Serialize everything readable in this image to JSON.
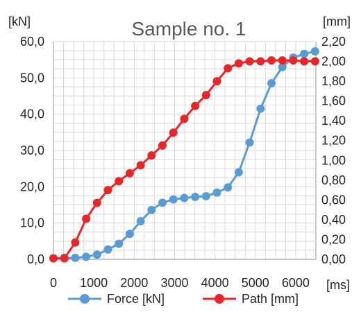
{
  "chart_data": {
    "type": "line",
    "title": "Sample no. 1",
    "left_unit": "[kN]",
    "right_unit": "[mm]",
    "x_unit": "[ms]",
    "xlim": [
      0,
      6500
    ],
    "ylim_left": [
      0,
      60
    ],
    "ylim_right": [
      0,
      2.2
    ],
    "x_ticks": [
      "0",
      "1000",
      "2000",
      "3000",
      "4000",
      "5000",
      "6000"
    ],
    "x_tick_values": [
      0,
      1000,
      2000,
      3000,
      4000,
      5000,
      6000
    ],
    "y_left_ticks": [
      "0,0",
      "10,0",
      "20,0",
      "30,0",
      "40,0",
      "50,0",
      "60,0"
    ],
    "y_left_tick_values": [
      0,
      10,
      20,
      30,
      40,
      50,
      60
    ],
    "y_right_ticks": [
      "0,00",
      "0,20",
      "0,40",
      "0,60",
      "0,80",
      "1,00",
      "1,20",
      "1,40",
      "1,60",
      "1,80",
      "2,00",
      "2,20"
    ],
    "y_right_tick_values": [
      0,
      0.2,
      0.4,
      0.6,
      0.8,
      1.0,
      1.2,
      1.4,
      1.6,
      1.8,
      2.0,
      2.2
    ],
    "grid": true,
    "legend_position": "bottom",
    "series": [
      {
        "name": "Force [kN]",
        "axis": "left",
        "color": "#5b9bd5",
        "x": [
          0,
          270,
          540,
          810,
          1080,
          1350,
          1620,
          1890,
          2160,
          2430,
          2700,
          2970,
          3240,
          3510,
          3780,
          4050,
          4320,
          4590,
          4860,
          5130,
          5400,
          5670,
          5940,
          6210,
          6480
        ],
        "y": [
          0.3,
          0.4,
          0.4,
          0.7,
          1.3,
          2.7,
          4.3,
          7.0,
          10.5,
          13.6,
          15.6,
          16.5,
          16.9,
          17.2,
          17.4,
          18.4,
          19.8,
          24.0,
          32.2,
          41.5,
          48.5,
          53.0,
          55.6,
          56.6,
          57.3
        ]
      },
      {
        "name": "Path [mm]",
        "axis": "right",
        "color": "#e8262a",
        "x": [
          0,
          270,
          540,
          810,
          1080,
          1350,
          1620,
          1890,
          2160,
          2430,
          2700,
          2970,
          3240,
          3510,
          3780,
          4050,
          4320,
          4590,
          4860,
          5130,
          5400,
          5670,
          5940,
          6210,
          6480
        ],
        "y": [
          0.01,
          0.01,
          0.17,
          0.41,
          0.57,
          0.7,
          0.79,
          0.87,
          0.95,
          1.05,
          1.15,
          1.28,
          1.42,
          1.55,
          1.66,
          1.8,
          1.93,
          1.98,
          2.0,
          2.0,
          2.01,
          2.01,
          2.01,
          2.0,
          2.0
        ]
      }
    ]
  }
}
